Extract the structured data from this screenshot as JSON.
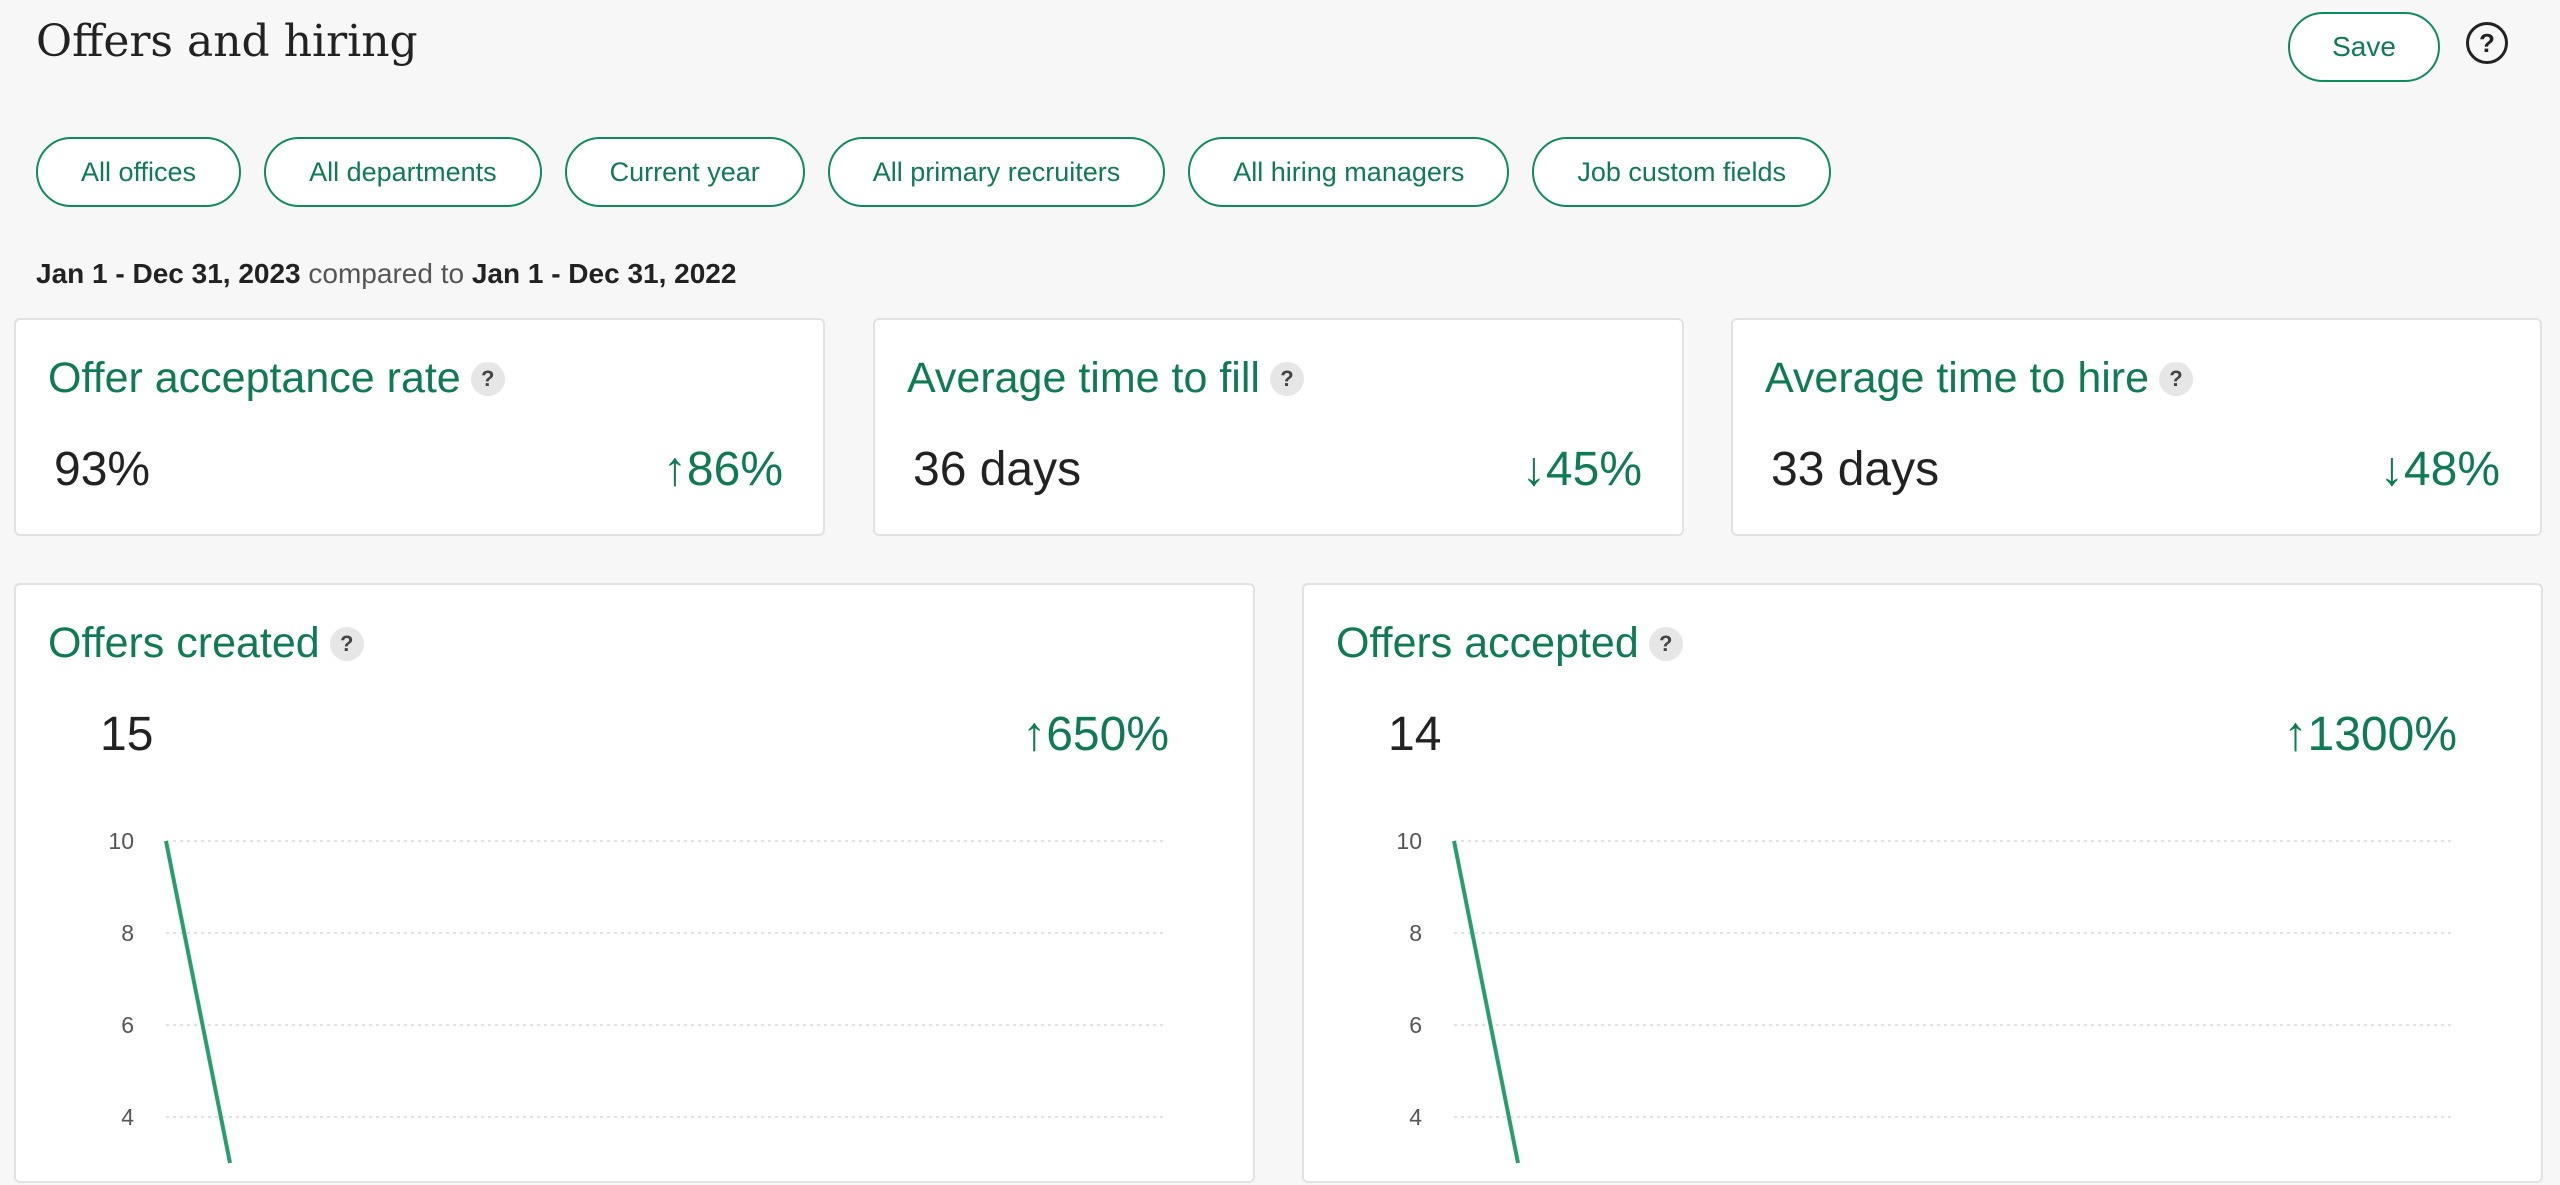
{
  "header": {
    "title": "Offers and hiring",
    "save_label": "Save",
    "help_icon": "?"
  },
  "filters": [
    "All offices",
    "All departments",
    "Current year",
    "All primary recruiters",
    "All hiring managers",
    "Job custom fields"
  ],
  "date_range": {
    "current": "Jan 1 - Dec 31, 2023",
    "compared_text": "compared to",
    "previous": "Jan 1 - Dec 31, 2022"
  },
  "metrics": [
    {
      "title": "Offer acceptance rate",
      "value": "93%",
      "change": "86%",
      "direction": "up",
      "arrow": "↑"
    },
    {
      "title": "Average time to fill",
      "value": "36 days",
      "change": "45%",
      "direction": "down",
      "arrow": "↓"
    },
    {
      "title": "Average time to hire",
      "value": "33 days",
      "change": "48%",
      "direction": "down",
      "arrow": "↓"
    }
  ],
  "chart_cards": [
    {
      "title": "Offers created",
      "value": "15",
      "change": "650%",
      "arrow": "↑"
    },
    {
      "title": "Offers accepted",
      "value": "14",
      "change": "1300%",
      "arrow": "↑"
    }
  ],
  "colors": {
    "accent": "#0f7a55",
    "line": "#2a9d6e",
    "grid": "#d9d9d9"
  },
  "chart_data": [
    {
      "type": "line",
      "title": "Offers created",
      "yticks": [
        4,
        6,
        8,
        10
      ],
      "ylim": [
        0,
        10
      ],
      "series": [
        {
          "values": [
            10,
            3
          ]
        }
      ],
      "grid": true
    },
    {
      "type": "line",
      "title": "Offers accepted",
      "yticks": [
        4,
        6,
        8,
        10
      ],
      "ylim": [
        0,
        10
      ],
      "series": [
        {
          "values": [
            10,
            3
          ]
        }
      ],
      "grid": true
    }
  ]
}
